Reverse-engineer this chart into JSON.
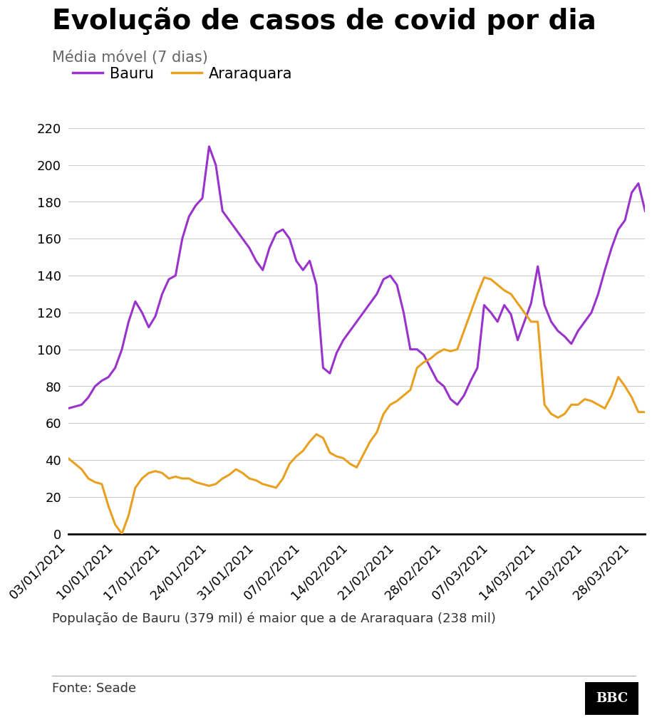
{
  "title": "Evolução de casos de covid por dia",
  "subtitle": "Média móvel (7 dias)",
  "footnote": "População de Bauru (379 mil) é maior que a de Araraquara (238 mil)",
  "source": "Fonte: Seade",
  "bauru_color": "#9933cc",
  "araraquara_color": "#e8a020",
  "ylim": [
    0,
    220
  ],
  "yticks": [
    0,
    20,
    40,
    60,
    80,
    100,
    120,
    140,
    160,
    180,
    200,
    220
  ],
  "x_labels": [
    "03/01/2021",
    "10/01/2021",
    "17/01/2021",
    "24/01/2021",
    "31/01/2021",
    "07/02/2021",
    "14/02/2021",
    "21/02/2021",
    "28/02/2021",
    "07/03/2021",
    "14/03/2021",
    "21/03/2021",
    "28/03/2021"
  ],
  "bauru": [
    68,
    69,
    70,
    74,
    80,
    83,
    85,
    90,
    100,
    115,
    126,
    120,
    112,
    118,
    130,
    138,
    140,
    160,
    172,
    178,
    182,
    210,
    200,
    175,
    170,
    165,
    160,
    155,
    148,
    143,
    155,
    163,
    165,
    160,
    148,
    143,
    148,
    135,
    90,
    87,
    98,
    105,
    110,
    115,
    120,
    125,
    130,
    138,
    140,
    135,
    120,
    100,
    100,
    97,
    90,
    83,
    80,
    73,
    70,
    75,
    83,
    90,
    124,
    120,
    115,
    124,
    119,
    105,
    115,
    125,
    145,
    124,
    115,
    110,
    107,
    103,
    110,
    115,
    120,
    130,
    143,
    155,
    165,
    170,
    185,
    190,
    175
  ],
  "araraquara": [
    41,
    38,
    35,
    30,
    28,
    27,
    15,
    5,
    0,
    10,
    25,
    30,
    33,
    34,
    33,
    30,
    31,
    30,
    30,
    28,
    27,
    26,
    27,
    30,
    32,
    35,
    33,
    30,
    29,
    27,
    26,
    25,
    30,
    38,
    42,
    45,
    50,
    54,
    52,
    44,
    42,
    41,
    38,
    36,
    43,
    50,
    55,
    65,
    70,
    72,
    75,
    78,
    90,
    93,
    95,
    98,
    100,
    99,
    100,
    110,
    120,
    130,
    139,
    138,
    135,
    132,
    130,
    125,
    120,
    115,
    115,
    70,
    65,
    63,
    65,
    70,
    70,
    73,
    72,
    70,
    68,
    75,
    85,
    80,
    74,
    66,
    66
  ],
  "title_fontsize": 28,
  "subtitle_fontsize": 15,
  "legend_fontsize": 15,
  "tick_fontsize": 13,
  "footnote_fontsize": 13,
  "source_fontsize": 13,
  "background_color": "#ffffff",
  "grid_color": "#cccccc"
}
